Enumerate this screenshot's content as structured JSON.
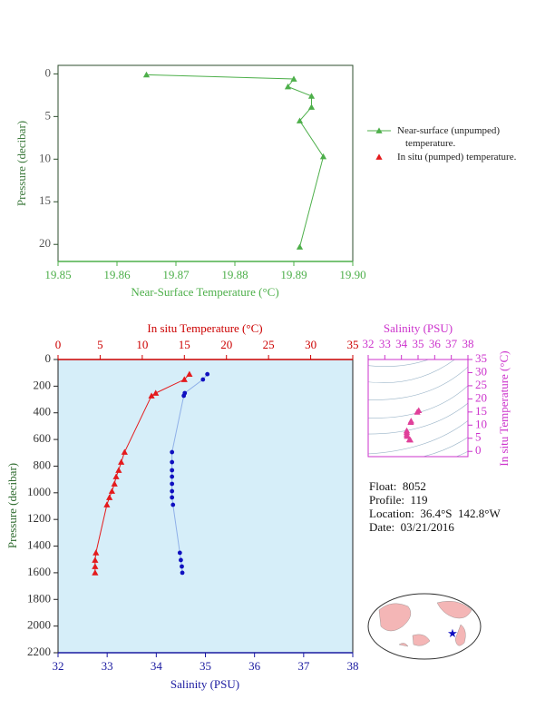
{
  "chart_data": [
    {
      "type": "line",
      "x_label": "Near-Surface Temperature (°C)",
      "y_label": "Pressure (decibar)",
      "xlim": [
        19.85,
        19.9
      ],
      "xticks": [
        19.85,
        19.86,
        19.87,
        19.88,
        19.89,
        {
          "value": 19.9,
          "label": "19.90"
        }
      ],
      "ylim": [
        -1,
        22
      ],
      "yticks": [
        0,
        5,
        10,
        15,
        20
      ],
      "y_inverted": true,
      "legend": "right",
      "series": [
        {
          "name": "Near-surface (unpumped) temperature.",
          "color": "#4daf4a",
          "marker": "triangle",
          "x": [
            19.865,
            19.89,
            19.889,
            19.893,
            19.893,
            19.891,
            19.895,
            19.891
          ],
          "values": [
            0.1,
            0.6,
            1.5,
            2.6,
            3.9,
            5.5,
            9.7,
            20.3
          ]
        },
        {
          "name": "In situ (pumped) temperature.",
          "color": "#e41a1c",
          "marker": "triangle",
          "x": [],
          "values": []
        }
      ]
    },
    {
      "type": "line",
      "x_label": "Salinity (PSU)",
      "x2_label": "In situ Temperature (°C)",
      "y_label": "Pressure (decibar)",
      "xlim": [
        32,
        38
      ],
      "xticks": [
        32,
        33,
        34,
        35,
        36,
        37,
        38
      ],
      "x2lim": [
        0,
        35
      ],
      "x2ticks": [
        0,
        5,
        10,
        15,
        20,
        25,
        30,
        35
      ],
      "ylim": [
        0,
        2200
      ],
      "yticks": [
        0,
        200,
        400,
        600,
        800,
        1000,
        1200,
        1400,
        1600,
        1800,
        2000,
        2200
      ],
      "y_inverted": true,
      "background": "#d6eef9",
      "series": [
        {
          "color": "#e41a1c",
          "marker": "triangle",
          "axis": "x2",
          "x": [
            15.6,
            15.0,
            11.6,
            11.1,
            7.9,
            7.5,
            7.2,
            6.9,
            6.7,
            6.4,
            6.1,
            5.8,
            4.5,
            4.4,
            4.4,
            4.4
          ],
          "values": [
            110,
            150,
            252,
            272,
            695,
            770,
            831,
            879,
            933,
            988,
            1035,
            1090,
            1450,
            1505,
            1553,
            1600
          ]
        },
        {
          "color": "#1010c0",
          "line_color": "#8fb0e8",
          "marker": "circle",
          "x": [
            35.04,
            34.95,
            34.58,
            34.56,
            34.32,
            34.32,
            34.32,
            34.32,
            34.32,
            34.32,
            34.32,
            34.34,
            34.48,
            34.5,
            34.52,
            34.53
          ],
          "values": [
            110,
            150,
            252,
            272,
            695,
            770,
            831,
            879,
            933,
            988,
            1035,
            1090,
            1450,
            1505,
            1553,
            1600
          ]
        }
      ]
    },
    {
      "type": "scatter",
      "x_label": "Salinity (PSU)",
      "y_label": "In situ Temperature (°C)",
      "xlim": [
        32,
        38
      ],
      "xticks": [
        32,
        33,
        34,
        35,
        36,
        37,
        38
      ],
      "ylim": [
        -2,
        35
      ],
      "yticks": [
        0,
        5,
        10,
        15,
        20,
        25,
        30,
        35
      ],
      "x_axis_position": "top",
      "y_axis_position": "right",
      "series": [
        {
          "color": "#e0409a",
          "marker": "triangle",
          "x": [
            35.04,
            34.95,
            34.58,
            34.56,
            34.32,
            34.32,
            34.32,
            34.34,
            34.48,
            34.53
          ],
          "values": [
            15.6,
            15.0,
            11.6,
            11.1,
            7.9,
            7.2,
            6.4,
            5.8,
            4.5,
            4.4
          ]
        }
      ]
    }
  ],
  "info": [
    "Float:  8052",
    "Profile:  119",
    "Location:  36.4°S  142.8°W",
    "Date:  03/21/2016"
  ]
}
